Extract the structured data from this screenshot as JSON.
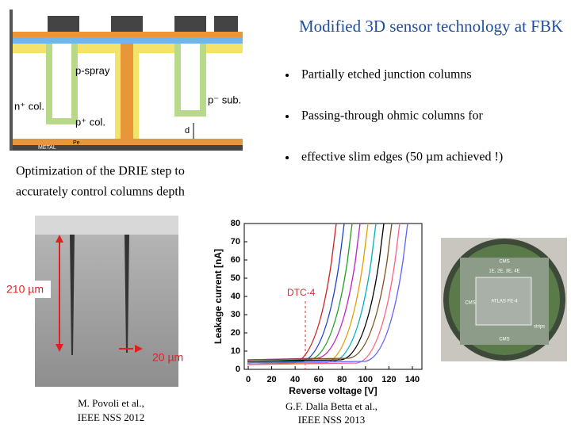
{
  "title": "Modified 3D sensor technology at FBK",
  "bullets": [
    "Partially etched junction columns",
    "Passing-through ohmic columns for",
    "effective slim edges (50 µm achieved !)"
  ],
  "caption": [
    "Optimization  of  the  DRIE  step  to",
    "accurately control columns depth"
  ],
  "diagram": {
    "p_spray": "p-spray",
    "n_col": "n⁺ col.",
    "p_col": "p⁺ col.",
    "p_sub": "p⁻ sub.",
    "d": "d",
    "metal": "METAL",
    "pe": "Pe"
  },
  "sem": {
    "depth": "210 µm",
    "width": "20 µm",
    "reference": [
      "M. Povoli et al.,",
      "IEEE NSS 2012"
    ]
  },
  "iv_plot": {
    "y_label": "Leakage current [nA]",
    "x_label": "Reverse voltage [V]",
    "yticks": [
      0,
      10,
      20,
      30,
      40,
      50,
      60,
      70,
      80
    ],
    "xticks": [
      0,
      20,
      40,
      60,
      80,
      100,
      120,
      140
    ],
    "annotation": "DTC-4",
    "reference": [
      "G.F. Dalla Betta et al.,",
      "IEEE NSS 2013"
    ]
  },
  "wafer": {
    "labels": [
      "CMS",
      "1E, 2E, 3E, 4E",
      "ATLAS FE-4",
      "CMS",
      "CMS",
      "strips"
    ]
  }
}
